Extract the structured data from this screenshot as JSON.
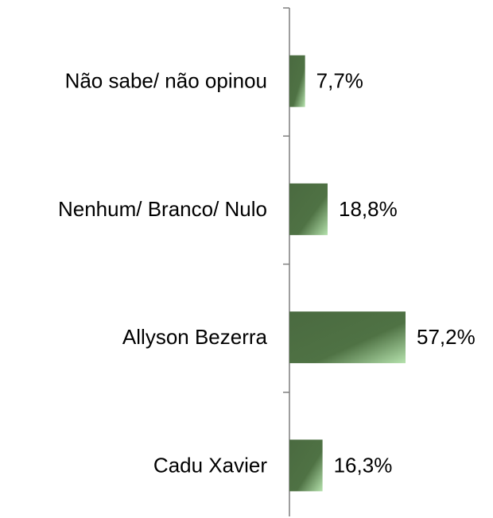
{
  "chart_data": {
    "type": "bar",
    "orientation": "horizontal",
    "categories": [
      "Não sabe/ não opinou",
      "Nenhum/ Branco/ Nulo",
      "Allyson Bezerra",
      "Cadu Xavier"
    ],
    "values": [
      7.7,
      18.8,
      57.2,
      16.3
    ],
    "value_labels": [
      "7,7%",
      "18,8%",
      "57,2%",
      "16,3%"
    ],
    "color": "#4a6a40"
  }
}
